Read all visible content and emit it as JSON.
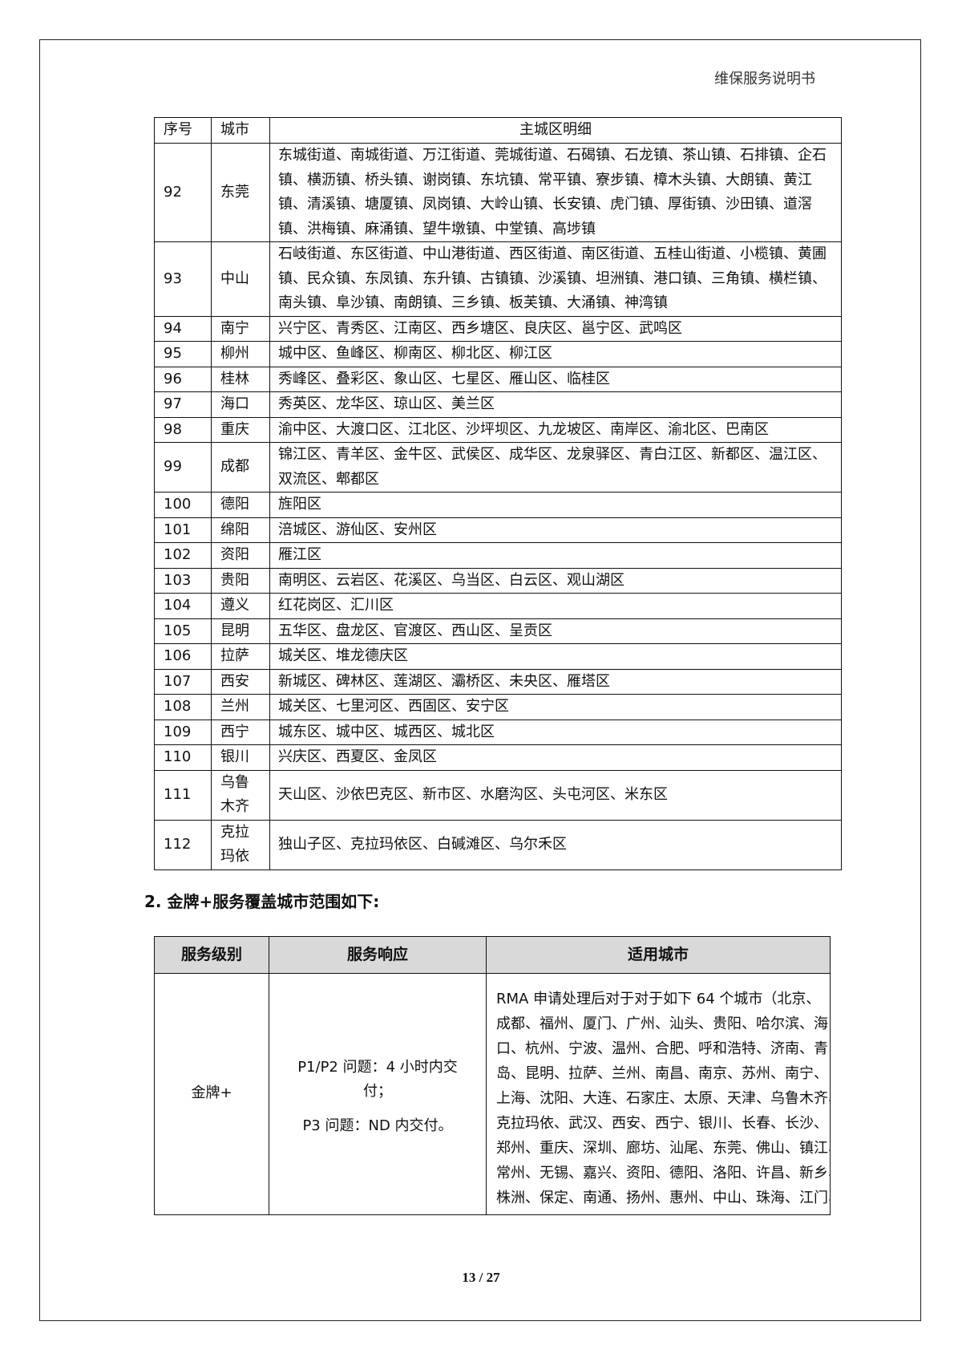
{
  "header": {
    "doc_title": "维保服务说明书"
  },
  "table1": {
    "headers": [
      "序号",
      "城市",
      "主城区明细"
    ],
    "rows": [
      {
        "no": "92",
        "city": [
          "东莞"
        ],
        "lines": [
          "东城街道、南城街道、万江街道、莞城街道、石碣镇、石龙镇、茶山镇、石排镇、企石",
          "镇、横沥镇、桥头镇、谢岗镇、东坑镇、常平镇、寮步镇、樟木头镇、大朗镇、黄江",
          "镇、清溪镇、塘厦镇、凤岗镇、大岭山镇、长安镇、虎门镇、厚街镇、沙田镇、道滘",
          "镇、洪梅镇、麻涌镇、望牛墩镇、中堂镇、高埗镇"
        ]
      },
      {
        "no": "93",
        "city": [
          "中山"
        ],
        "lines": [
          "石岐街道、东区街道、中山港街道、西区街道、南区街道、五桂山街道、小榄镇、黄圃",
          "镇、民众镇、东凤镇、东升镇、古镇镇、沙溪镇、坦洲镇、港口镇、三角镇、横栏镇、",
          "南头镇、阜沙镇、南朗镇、三乡镇、板芙镇、大涌镇、神湾镇"
        ]
      },
      {
        "no": "94",
        "city": [
          "南宁"
        ],
        "lines": [
          "兴宁区、青秀区、江南区、西乡塘区、良庆区、邕宁区、武鸣区"
        ]
      },
      {
        "no": "95",
        "city": [
          "柳州"
        ],
        "lines": [
          "城中区、鱼峰区、柳南区、柳北区、柳江区"
        ]
      },
      {
        "no": "96",
        "city": [
          "桂林"
        ],
        "lines": [
          "秀峰区、叠彩区、象山区、七星区、雁山区、临桂区"
        ]
      },
      {
        "no": "97",
        "city": [
          "海口"
        ],
        "lines": [
          "秀英区、龙华区、琼山区、美兰区"
        ]
      },
      {
        "no": "98",
        "city": [
          "重庆"
        ],
        "lines": [
          "渝中区、大渡口区、江北区、沙坪坝区、九龙坡区、南岸区、渝北区、巴南区"
        ]
      },
      {
        "no": "99",
        "city": [
          "成都"
        ],
        "lines": [
          "锦江区、青羊区、金牛区、武侯区、成华区、龙泉驿区、青白江区、新都区、温江区、",
          "双流区、郫都区"
        ]
      },
      {
        "no": "100",
        "city": [
          "德阳"
        ],
        "lines": [
          "旌阳区"
        ]
      },
      {
        "no": "101",
        "city": [
          "绵阳"
        ],
        "lines": [
          "涪城区、游仙区、安州区"
        ]
      },
      {
        "no": "102",
        "city": [
          "资阳"
        ],
        "lines": [
          "雁江区"
        ]
      },
      {
        "no": "103",
        "city": [
          "贵阳"
        ],
        "lines": [
          "南明区、云岩区、花溪区、乌当区、白云区、观山湖区"
        ]
      },
      {
        "no": "104",
        "city": [
          "遵义"
        ],
        "lines": [
          "红花岗区、汇川区"
        ]
      },
      {
        "no": "105",
        "city": [
          "昆明"
        ],
        "lines": [
          "五华区、盘龙区、官渡区、西山区、呈贡区"
        ]
      },
      {
        "no": "106",
        "city": [
          "拉萨"
        ],
        "lines": [
          "城关区、堆龙德庆区"
        ]
      },
      {
        "no": "107",
        "city": [
          "西安"
        ],
        "lines": [
          "新城区、碑林区、莲湖区、灞桥区、未央区、雁塔区"
        ]
      },
      {
        "no": "108",
        "city": [
          "兰州"
        ],
        "lines": [
          "城关区、七里河区、西固区、安宁区"
        ]
      },
      {
        "no": "109",
        "city": [
          "西宁"
        ],
        "lines": [
          "城东区、城中区、城西区、城北区"
        ]
      },
      {
        "no": "110",
        "city": [
          "银川"
        ],
        "lines": [
          "兴庆区、西夏区、金凤区"
        ]
      },
      {
        "no": "111",
        "city": [
          "乌鲁",
          "木齐"
        ],
        "lines": [
          "天山区、沙依巴克区、新市区、水磨沟区、头屯河区、米东区"
        ]
      },
      {
        "no": "112",
        "city": [
          "克拉",
          "玛依"
        ],
        "lines": [
          "独山子区、克拉玛依区、白碱滩区、乌尔禾区"
        ]
      }
    ]
  },
  "section_heading": "2. 金牌+服务覆盖城市范围如下:",
  "table2": {
    "headers": [
      "服务级别",
      "服务响应",
      "适用城市"
    ],
    "row": {
      "level": "金牌+",
      "response_p12": [
        "P1/P2 问题：4 小时内交",
        "付；"
      ],
      "response_p3": "P3 问题：ND 内交付。",
      "cities_lines": [
        "RMA 申请处理后对于对于如下 64 个城市（北京、",
        "成都、福州、厦门、广州、汕头、贵阳、哈尔滨、海",
        "口、杭州、宁波、温州、合肥、呼和浩特、济南、青",
        "岛、昆明、拉萨、兰州、南昌、南京、苏州、南宁、",
        "上海、沈阳、大连、石家庄、太原、天津、乌鲁木齐、",
        "克拉玛依、武汉、西安、西宁、银川、长春、长沙、",
        "郑州、重庆、深圳、廊坊、汕尾、东莞、佛山、镇江、",
        "常州、无锡、嘉兴、资阳、德阳、洛阳、许昌、新乡、",
        "株洲、保定、南通、扬州、惠州、中山、珠海、江门、"
      ]
    }
  },
  "footer": {
    "page_number": "13 / 27"
  }
}
